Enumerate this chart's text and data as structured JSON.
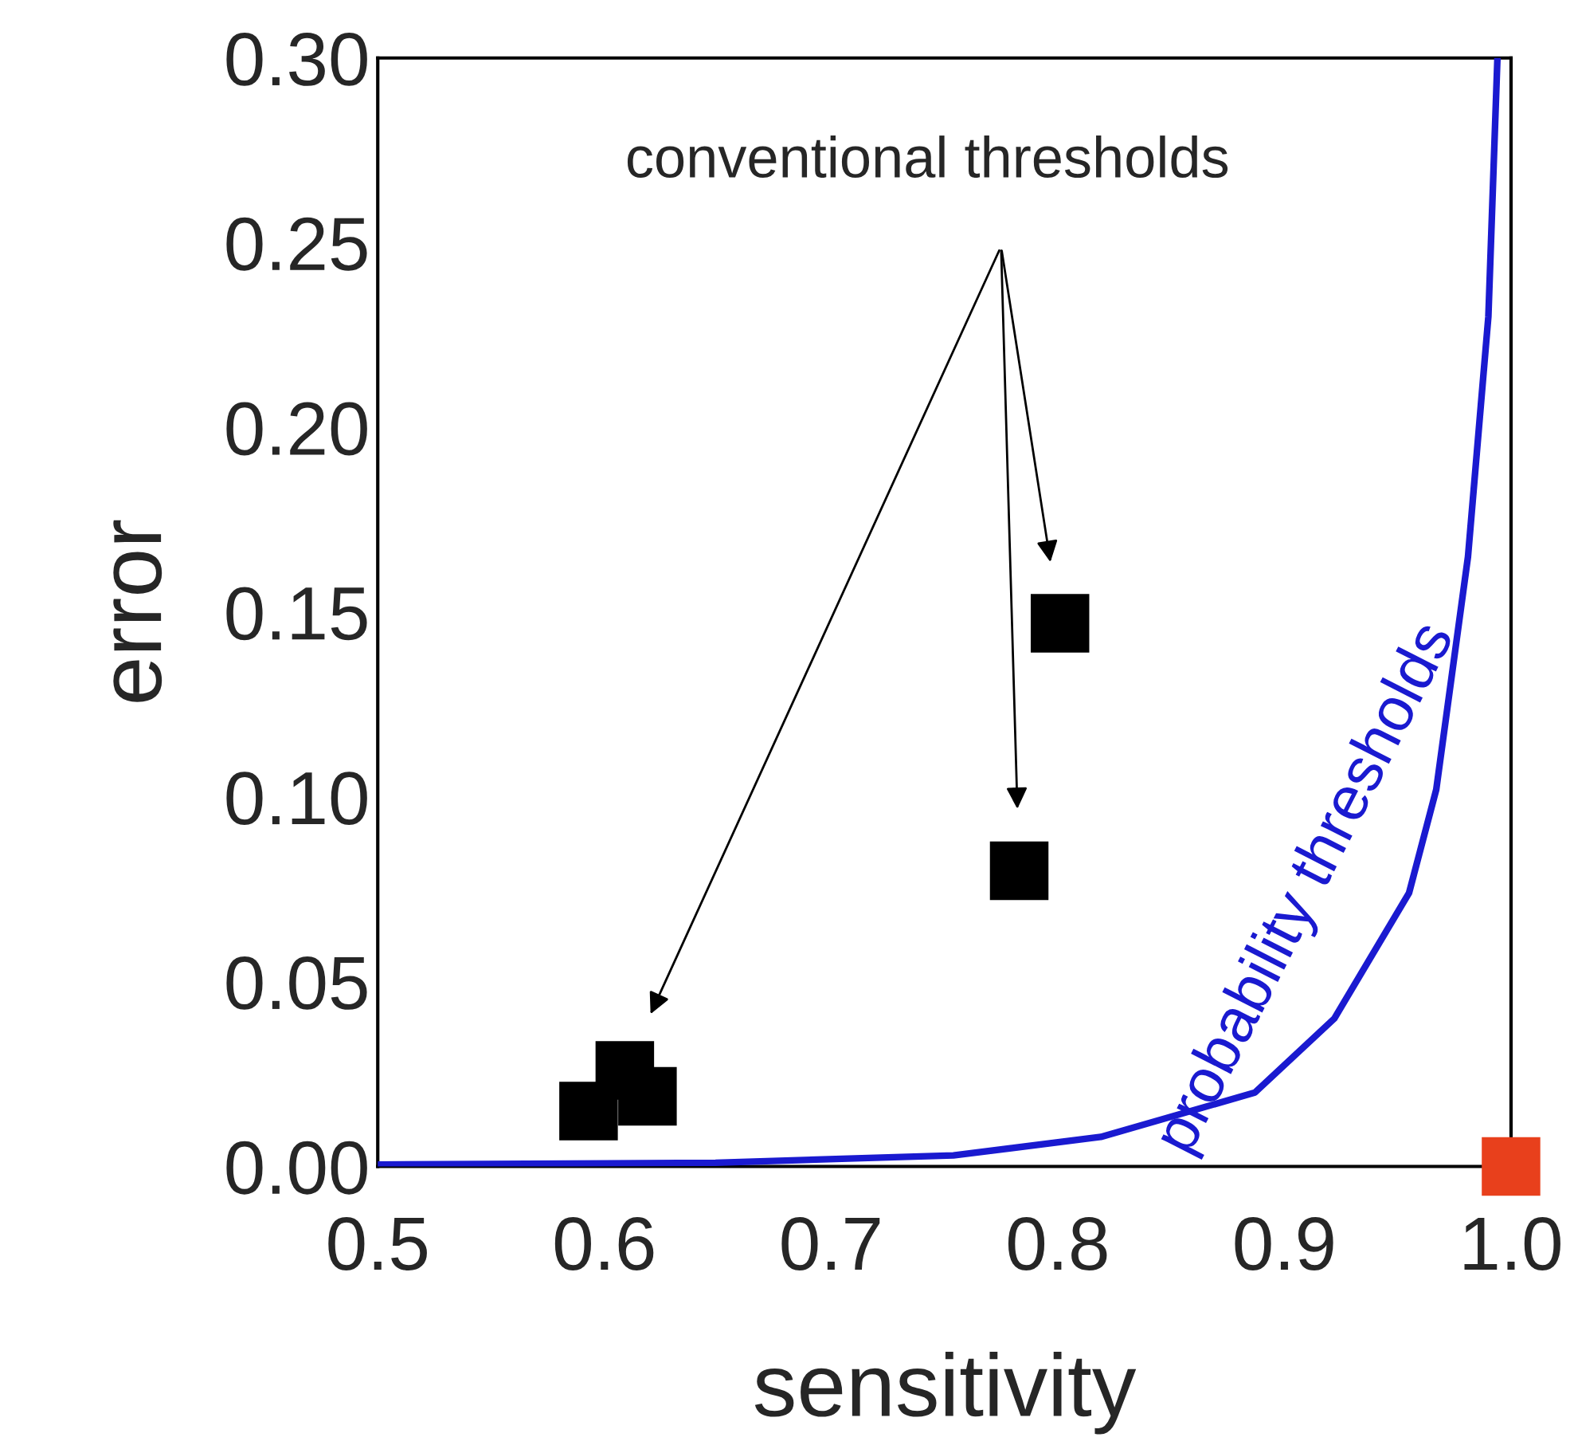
{
  "chart_data": {
    "type": "scatter",
    "xlabel": "sensitivity",
    "ylabel": "error",
    "xlim": [
      0.5,
      1.0
    ],
    "ylim": [
      0.0,
      0.3
    ],
    "xticks": [
      {
        "value": 0.5,
        "label": "0.5"
      },
      {
        "value": 0.6,
        "label": "0.6"
      },
      {
        "value": 0.7,
        "label": "0.7"
      },
      {
        "value": 0.8,
        "label": "0.8"
      },
      {
        "value": 0.9,
        "label": "0.9"
      },
      {
        "value": 1.0,
        "label": "1.0"
      }
    ],
    "yticks": [
      {
        "value": 0.0,
        "label": "0.00"
      },
      {
        "value": 0.05,
        "label": "0.05"
      },
      {
        "value": 0.1,
        "label": "0.10"
      },
      {
        "value": 0.15,
        "label": "0.15"
      },
      {
        "value": 0.2,
        "label": "0.20"
      },
      {
        "value": 0.25,
        "label": "0.25"
      },
      {
        "value": 0.3,
        "label": "0.30"
      }
    ],
    "grid": false,
    "marker": "square",
    "series": [
      {
        "color": "#000000",
        "x": [
          0.593,
          0.609,
          0.619,
          0.783,
          0.801
        ],
        "values": [
          0.015,
          0.026,
          0.019,
          0.08,
          0.147
        ]
      },
      {
        "type": "line",
        "color": "#1a1ad0",
        "marker": "none",
        "x": [
          0.5,
          0.649,
          0.754,
          0.819,
          0.887,
          0.922,
          0.955,
          0.967,
          0.981,
          0.99,
          0.994
        ],
        "values": [
          0.0005,
          0.001,
          0.003,
          0.008,
          0.02,
          0.04,
          0.074,
          0.102,
          0.165,
          0.23,
          0.3
        ]
      },
      {
        "color": "#e8401c",
        "x": [
          1.0
        ],
        "values": [
          0.0
        ]
      }
    ],
    "annotations": [
      "conventional thresholds",
      "probability thresholds"
    ]
  }
}
